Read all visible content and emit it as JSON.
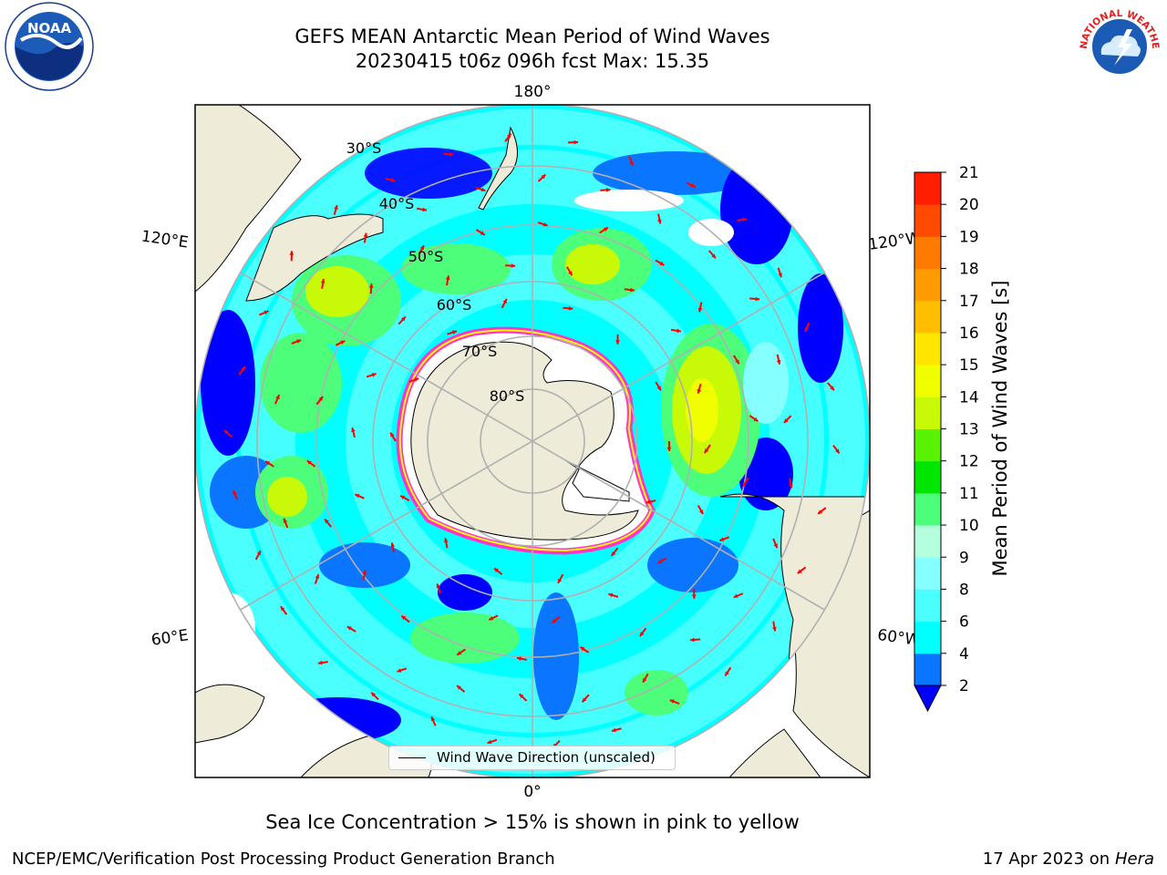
{
  "header": {
    "title_line1": "GEFS MEAN Antarctic Mean Period of Wind Waves",
    "title_line2": "20230415 t06z 096h fcst   Max: 15.35"
  },
  "logos": {
    "left": {
      "icon": "noaa-logo",
      "text": "NOAA"
    },
    "right": {
      "icon": "nws-logo",
      "text": "NATIONAL WEATHER SERVICE"
    }
  },
  "map": {
    "projection": "south-polar-stereographic",
    "lon_labels": {
      "top": "180°",
      "bottom": "0°",
      "left_upper": "120°E",
      "left_lower": "60°E",
      "right_upper": "120°W",
      "right_lower": "60°W"
    },
    "lat_labels": [
      "30°S",
      "40°S",
      "50°S",
      "60°S",
      "70°S",
      "80°S"
    ],
    "arrow_color": "#ff0000",
    "land_color": "#efebd9",
    "ice_edge_colors": [
      "#ff33cc",
      "#ffff00"
    ]
  },
  "legend": {
    "label": "Wind Wave Direction (unscaled)"
  },
  "colorbar": {
    "title": "Mean Period of Wind Waves [s]",
    "ticks": [
      "2",
      "4",
      "6",
      "8",
      "9",
      "10",
      "11",
      "12",
      "13",
      "14",
      "15",
      "16",
      "17",
      "18",
      "19",
      "20",
      "21"
    ],
    "colors": [
      "#0a75ff",
      "#00ffff",
      "#4cffff",
      "#85ffff",
      "#b4ffde",
      "#4cfe7a",
      "#00e600",
      "#5af203",
      "#c8fa07",
      "#f0ff00",
      "#ffe600",
      "#ffbe00",
      "#ff9a00",
      "#ff7a00",
      "#ff4a00",
      "#ff1e00"
    ],
    "under_color": "#0000ff"
  },
  "subtitle": "Sea Ice Concentration > 15% is shown in pink to yellow",
  "footer": {
    "left": "NCEP/EMC/Verification Post Processing Product Generation Branch",
    "right_prefix": "17 Apr 2023 on ",
    "right_italic": "Hera"
  }
}
